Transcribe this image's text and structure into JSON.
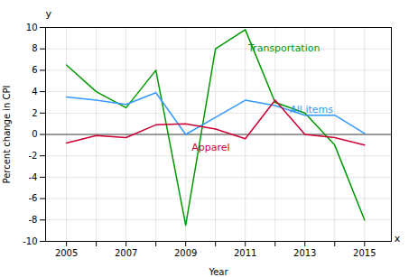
{
  "chart_data": {
    "type": "line",
    "x": [
      2005,
      2006,
      2007,
      2008,
      2009,
      2010,
      2011,
      2012,
      2013,
      2014,
      2015
    ],
    "series": [
      {
        "name": "Transportation",
        "color": "#009900",
        "values": [
          6.5,
          4.0,
          2.5,
          6.0,
          -8.5,
          8.0,
          9.8,
          3.0,
          2.0,
          -1.0,
          -8.0
        ]
      },
      {
        "name": "All items",
        "color": "#3399ff",
        "values": [
          3.5,
          3.2,
          2.8,
          3.9,
          0.0,
          1.6,
          3.2,
          2.7,
          1.8,
          1.8,
          0.1
        ]
      },
      {
        "name": "Apparel",
        "color": "#cc0033",
        "values": [
          -0.8,
          -0.1,
          -0.3,
          0.9,
          1.0,
          0.5,
          -0.4,
          3.2,
          0.0,
          -0.3,
          -1.0
        ]
      }
    ],
    "xlabel": "Year",
    "ylabel": "Percent change in CPI",
    "xlim": [
      2004.3,
      2015.9
    ],
    "ylim": [
      -10,
      10
    ],
    "xticks": [
      2005,
      {
        "value": 2006,
        "label": null
      },
      2007,
      {
        "value": 2008,
        "label": null
      },
      2009,
      {
        "value": 2010,
        "label": null
      },
      2011,
      {
        "value": 2012,
        "label": null
      },
      2013,
      {
        "value": 2014,
        "label": null
      },
      2015
    ],
    "yticks": [
      -10,
      -8,
      -6,
      -4,
      -2,
      0,
      2,
      4,
      6,
      8,
      10
    ],
    "grid": true,
    "annotations": [
      {
        "text": "Transportation",
        "x": 2011.1,
        "y": 7.8,
        "color": "#009900"
      },
      {
        "text": "All items",
        "x": 2012.5,
        "y": 2.0,
        "color": "#3399ff"
      },
      {
        "text": "Apparel",
        "x": 2009.2,
        "y": -1.5,
        "color": "#cc0033"
      },
      {
        "text": "x",
        "x": 2016.0,
        "y": -10
      },
      {
        "text": "y",
        "x": 2004.3,
        "y": 11.0
      }
    ]
  }
}
